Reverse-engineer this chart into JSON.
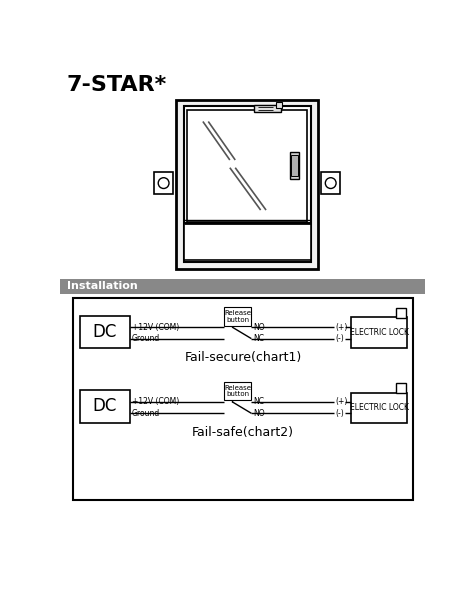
{
  "title": "7-STAR*",
  "title_fontsize": 16,
  "white": "#ffffff",
  "black": "#000000",
  "light_gray": "#e8e8e8",
  "gray_bar_color": "#888888",
  "installation_label": "Installation",
  "chart1_label": "Fail-secure(chart1)",
  "chart2_label": "Fail-safe(chart2)",
  "dc_label": "DC",
  "electric_lock_label": "ELECTRIC LOCK",
  "release_button_label": "Release\nbutton",
  "plus12v_label": "+12V (COM)",
  "ground_label": "Ground",
  "no_label": "NO",
  "nc_label": "NC",
  "plus_label": "(+)",
  "minus_label": "(-)"
}
